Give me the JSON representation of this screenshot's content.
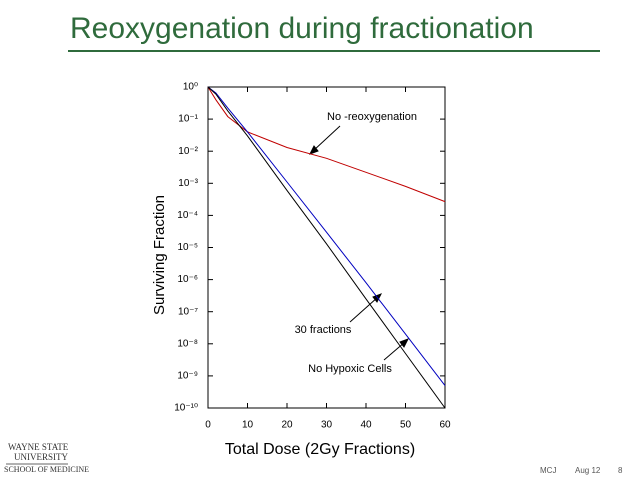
{
  "chart_data": {
    "type": "line",
    "title": "Reoxygenation during fractionation",
    "x_label": "Total Dose (2Gy Fractions)",
    "y_label": "Surviving Fraction",
    "x": [
      0,
      2,
      5,
      10,
      20,
      30,
      40,
      50,
      60
    ],
    "series": [
      {
        "name": "No -reoxygenation",
        "color": "#c00000",
        "values": [
          1,
          0.4,
          0.12,
          0.04,
          0.013,
          0.006,
          0.0022,
          0.0008,
          0.00027
        ]
      },
      {
        "name": "30 fractions",
        "color": "#0000c0",
        "values": [
          1,
          0.65,
          0.22,
          0.04,
          0.0011,
          3e-05,
          8e-07,
          2e-08,
          5e-10
        ]
      },
      {
        "name": "No Hypoxic Cells",
        "color": "#000000",
        "values": [
          1,
          0.6,
          0.18,
          0.03,
          0.0006,
          1.3e-05,
          2.5e-07,
          5e-09,
          1e-10
        ]
      }
    ],
    "xlim": [
      0,
      60
    ],
    "xticks": [
      0,
      10,
      20,
      30,
      40,
      50,
      60
    ],
    "ylim": [
      1e-10,
      1
    ],
    "ylog": true,
    "yticks": [
      {
        "value": 1,
        "label": "10⁰"
      },
      {
        "value": 0.1,
        "label": "10⁻¹"
      },
      {
        "value": 0.01,
        "label": "10⁻²"
      },
      {
        "value": 0.001,
        "label": "10⁻³"
      },
      {
        "value": 0.0001,
        "label": "10⁻⁴"
      },
      {
        "value": 1e-05,
        "label": "10⁻⁵"
      },
      {
        "value": 1e-06,
        "label": "10⁻⁶"
      },
      {
        "value": 1e-07,
        "label": "10⁻⁷"
      },
      {
        "value": 1e-08,
        "label": "10⁻⁸"
      },
      {
        "value": 1e-09,
        "label": "10⁻⁹"
      },
      {
        "value": 1e-10,
        "label": "10⁻¹⁰"
      }
    ]
  },
  "footer": {
    "logo": [
      "WAYNE STATE",
      "UNIVERSITY",
      "SCHOOL OF MEDICINE"
    ],
    "author": "MCJ",
    "date": "Aug 12",
    "page": "8"
  }
}
